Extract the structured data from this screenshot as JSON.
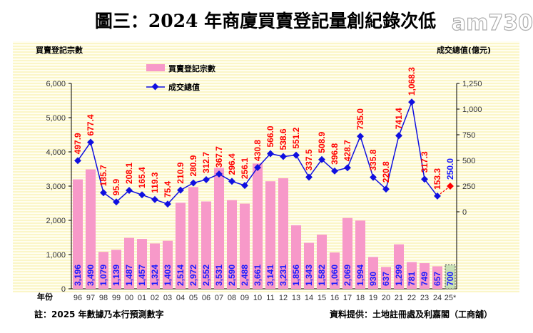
{
  "chart_data": {
    "type": "bar+line",
    "title": "圖三：2024 年商廈買賣登記量創紀錄次低",
    "ylabel_left": "買賣登記宗數",
    "ylabel_right": "成交總值(億元)",
    "xlabel": "年份",
    "ylim_left": [
      0,
      6000
    ],
    "yticks_left": [
      "6,000",
      "5,000",
      "4,000",
      "3,000",
      "2,000",
      "1,000",
      "0"
    ],
    "ylim_right": [
      -750,
      1250
    ],
    "yticks_right": [
      "1,250",
      "1,000",
      "750",
      "500",
      "250",
      "0"
    ],
    "legend": {
      "placement": "top-center",
      "bar": "買賣登記宗數",
      "line": "成交總值"
    },
    "categories": [
      "96",
      "97",
      "98",
      "99",
      "00",
      "01",
      "02",
      "03",
      "04",
      "05",
      "06",
      "07",
      "08",
      "09",
      "10",
      "11",
      "12",
      "13",
      "14",
      "15",
      "16",
      "17",
      "18",
      "19",
      "20",
      "21",
      "22",
      "23",
      "24",
      "25*"
    ],
    "series": [
      {
        "name": "買賣登記宗數",
        "type": "bar",
        "values": [
          3196,
          3490,
          1079,
          1139,
          1487,
          1457,
          1324,
          1403,
          2514,
          2972,
          2552,
          3531,
          2590,
          2488,
          3661,
          3141,
          3231,
          1856,
          1343,
          1582,
          1060,
          2069,
          1994,
          930,
          637,
          1299,
          781,
          749,
          657,
          700
        ],
        "labels": [
          "3,196",
          "3,490",
          "1,079",
          "1,139",
          "1,487",
          "1,457",
          "1,324",
          "1,403",
          "2,514",
          "2,972",
          "2,552",
          "3,531",
          "2,590",
          "2,488",
          "3,661",
          "3,141",
          "3,231",
          "1,856",
          "1,343",
          "1,582",
          "1,060",
          "2,069",
          "1,994",
          "930",
          "637",
          "1,299",
          "781",
          "749",
          "657",
          "700"
        ]
      },
      {
        "name": "成交總值",
        "type": "line",
        "values": [
          497.9,
          677.4,
          185.7,
          95.9,
          208.1,
          165.4,
          119.3,
          75.4,
          210.9,
          280.9,
          312.7,
          367.7,
          296.4,
          256.1,
          430.8,
          566.0,
          538.6,
          551.2,
          337.5,
          508.9,
          396.8,
          428.7,
          735.0,
          335.8,
          220.8,
          741.4,
          1068.3,
          317.3,
          153.3,
          250.0
        ],
        "labels": [
          "497.9",
          "677.4",
          "185.7",
          "95.9",
          "208.1",
          "165.4",
          "119.3",
          "75.4",
          "210.9",
          "280.9",
          "312.7",
          "367.7",
          "296.4",
          "256.1",
          "430.8",
          "566.0",
          "538.6",
          "551.2",
          "337.5",
          "508.9",
          "396.8",
          "428.7",
          "735.0",
          "335.8",
          "220.8",
          "741.4",
          "1,068.3",
          "317.3",
          "153.3",
          "250.0"
        ]
      }
    ],
    "forecast_category": "25*",
    "grid": false,
    "colors": {
      "bar": "#f799c9",
      "bar_forecast": "#c8e0b4",
      "line": "#1010e0",
      "line_label": "#ff0000",
      "bar_label": "#1a1aff",
      "forecast_line": "#ff0000",
      "background": "#fffde0"
    }
  },
  "footer": {
    "note": "註：2025 年數據乃本行預測數字",
    "source": "資料提供：土地註冊處及利嘉閣（工商舖）"
  },
  "watermark": "am730"
}
